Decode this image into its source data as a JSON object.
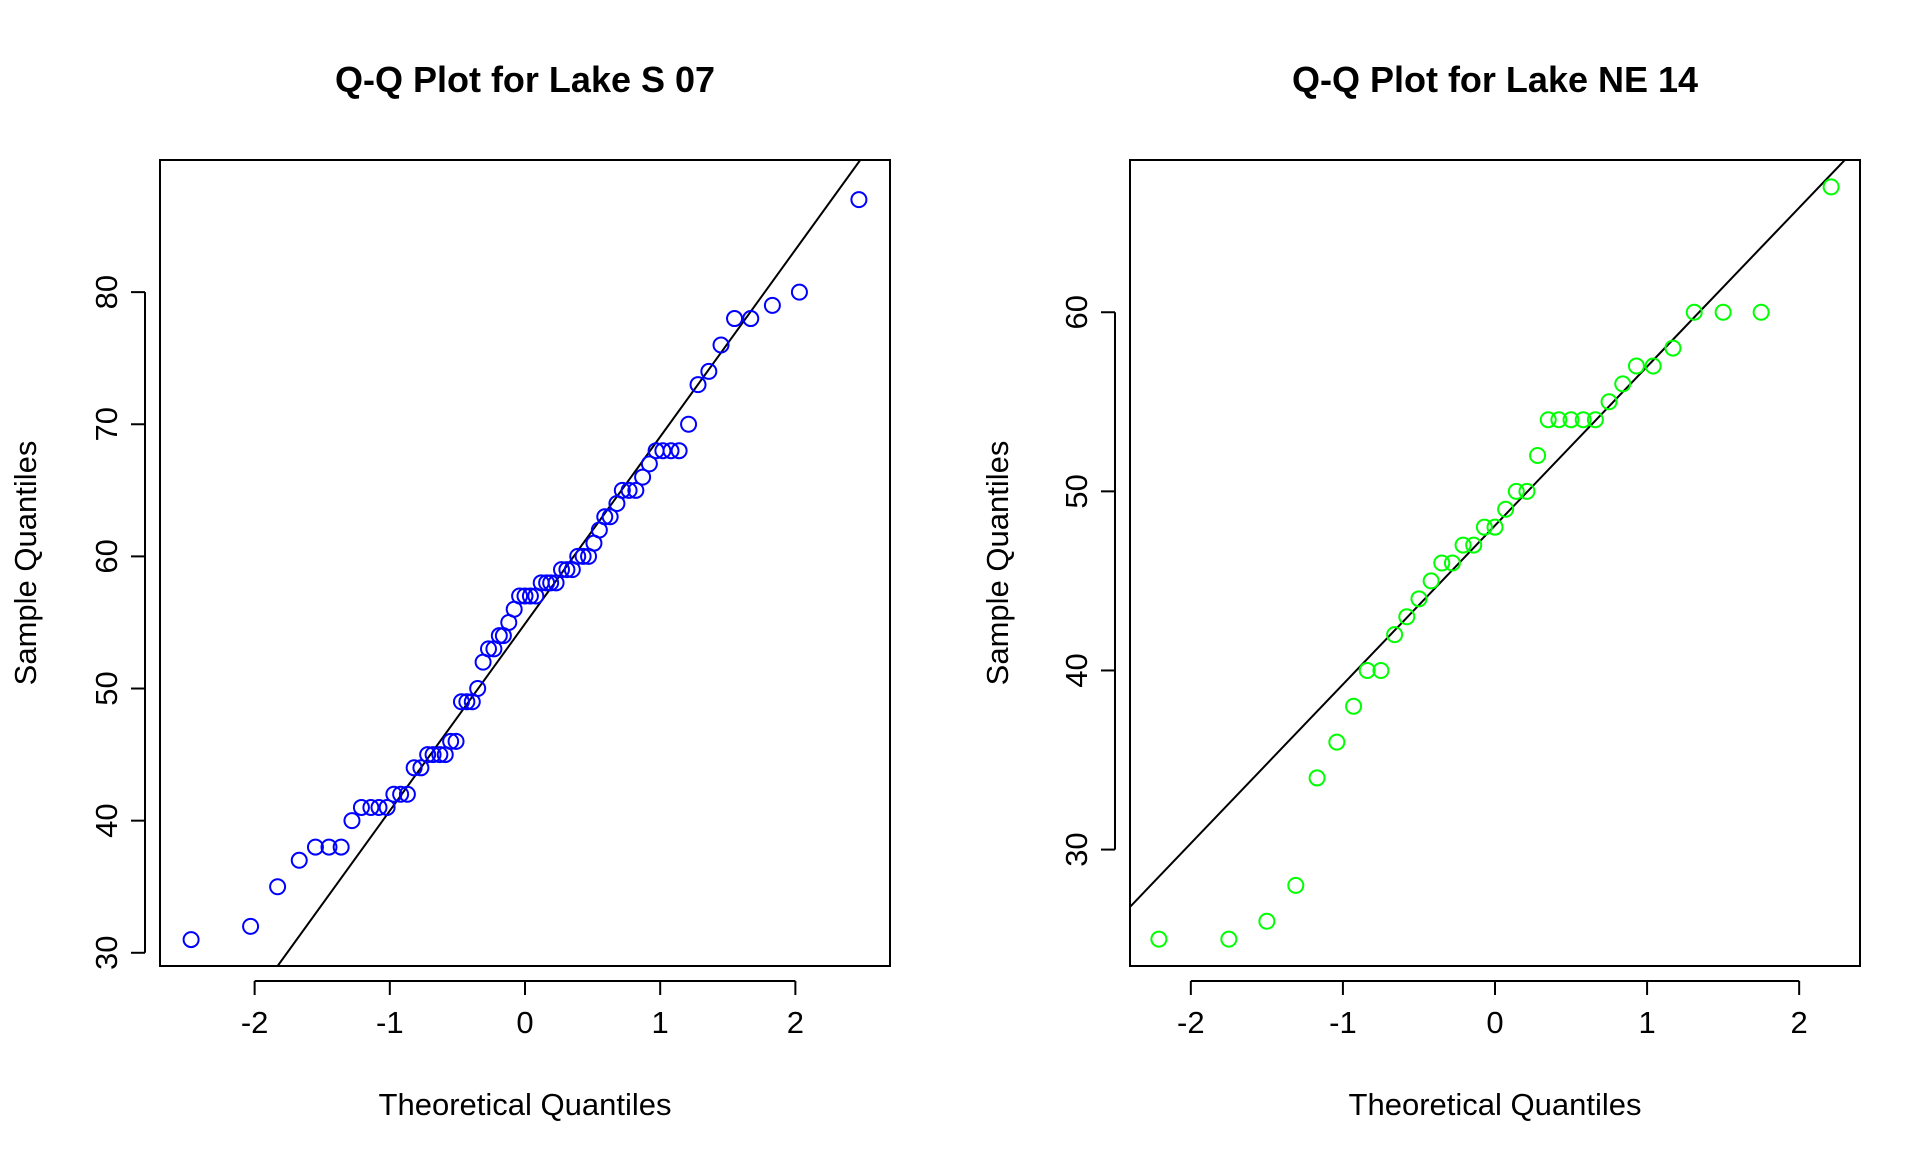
{
  "chart_data": [
    {
      "type": "scatter",
      "title": "Q-Q Plot for Lake S 07",
      "xlabel": "Theoretical Quantiles",
      "ylabel": "Sample Quantiles",
      "xlim": [
        -2.7,
        2.7
      ],
      "ylim": [
        29,
        90
      ],
      "xticks": [
        -2,
        -1,
        0,
        1,
        2
      ],
      "yticks": [
        30,
        40,
        50,
        60,
        70,
        80
      ],
      "point_color": "#0000ff",
      "line_color": "#000000",
      "reference_line": {
        "x": [
          -1.83,
          2.48
        ],
        "y": [
          29,
          90
        ]
      },
      "series": [
        {
          "x": [
            -2.47,
            -2.03,
            -1.83,
            -1.67,
            -1.55,
            -1.45,
            -1.36,
            -1.28,
            -1.21,
            -1.14,
            -1.08,
            -1.02,
            -0.97,
            -0.92,
            -0.87,
            -0.82,
            -0.77,
            -0.72,
            -0.68,
            -0.63,
            -0.59,
            -0.55,
            -0.51,
            -0.47,
            -0.43,
            -0.39,
            -0.35,
            -0.31,
            -0.27,
            -0.23,
            -0.19,
            -0.16,
            -0.12,
            -0.08,
            -0.04,
            0.0,
            0.04,
            0.08,
            0.12,
            0.16,
            0.19,
            0.23,
            0.27,
            0.31,
            0.35,
            0.39,
            0.43,
            0.47,
            0.51,
            0.55,
            0.59,
            0.63,
            0.68,
            0.72,
            0.77,
            0.82,
            0.87,
            0.92,
            0.97,
            1.02,
            1.08,
            1.14,
            1.21,
            1.28,
            1.36,
            1.45,
            1.55,
            1.67,
            1.83,
            2.03,
            2.47
          ],
          "y": [
            31,
            32,
            35,
            37,
            38,
            38,
            38,
            40,
            41,
            41,
            41,
            41,
            42,
            42,
            42,
            44,
            44,
            45,
            45,
            45,
            45,
            46,
            46,
            49,
            49,
            49,
            50,
            52,
            53,
            53,
            54,
            54,
            55,
            56,
            57,
            57,
            57,
            57,
            58,
            58,
            58,
            58,
            59,
            59,
            59,
            60,
            60,
            60,
            61,
            62,
            63,
            63,
            64,
            65,
            65,
            65,
            66,
            67,
            68,
            68,
            68,
            68,
            70,
            73,
            74,
            76,
            78,
            78,
            79,
            80,
            87
          ]
        }
      ]
    },
    {
      "type": "scatter",
      "title": "Q-Q Plot for Lake NE 14",
      "xlabel": "Theoretical Quantiles",
      "ylabel": "Sample Quantiles",
      "xlim": [
        -2.4,
        2.4
      ],
      "ylim": [
        23.5,
        68.5
      ],
      "xticks": [
        -2,
        -1,
        0,
        1,
        2
      ],
      "yticks": [
        30,
        40,
        50,
        60
      ],
      "point_color": "#00ff00",
      "line_color": "#000000",
      "reference_line": {
        "x": [
          -2.4,
          2.3
        ],
        "y": [
          26.8,
          68.5
        ]
      },
      "series": [
        {
          "x": [
            -2.21,
            -1.75,
            -1.5,
            -1.31,
            -1.17,
            -1.04,
            -0.93,
            -0.84,
            -0.75,
            -0.66,
            -0.58,
            -0.5,
            -0.42,
            -0.35,
            -0.28,
            -0.21,
            -0.14,
            -0.07,
            0.0,
            0.07,
            0.14,
            0.21,
            0.28,
            0.35,
            0.42,
            0.5,
            0.58,
            0.66,
            0.75,
            0.84,
            0.93,
            1.04,
            1.17,
            1.31,
            1.5,
            1.75,
            2.21
          ],
          "y": [
            25,
            25,
            26,
            28,
            34,
            36,
            38,
            40,
            40,
            42,
            43,
            44,
            45,
            46,
            46,
            47,
            47,
            48,
            48,
            49,
            50,
            50,
            52,
            54,
            54,
            54,
            54,
            54,
            55,
            56,
            57,
            57,
            58,
            60,
            60,
            60,
            67
          ]
        }
      ]
    }
  ]
}
